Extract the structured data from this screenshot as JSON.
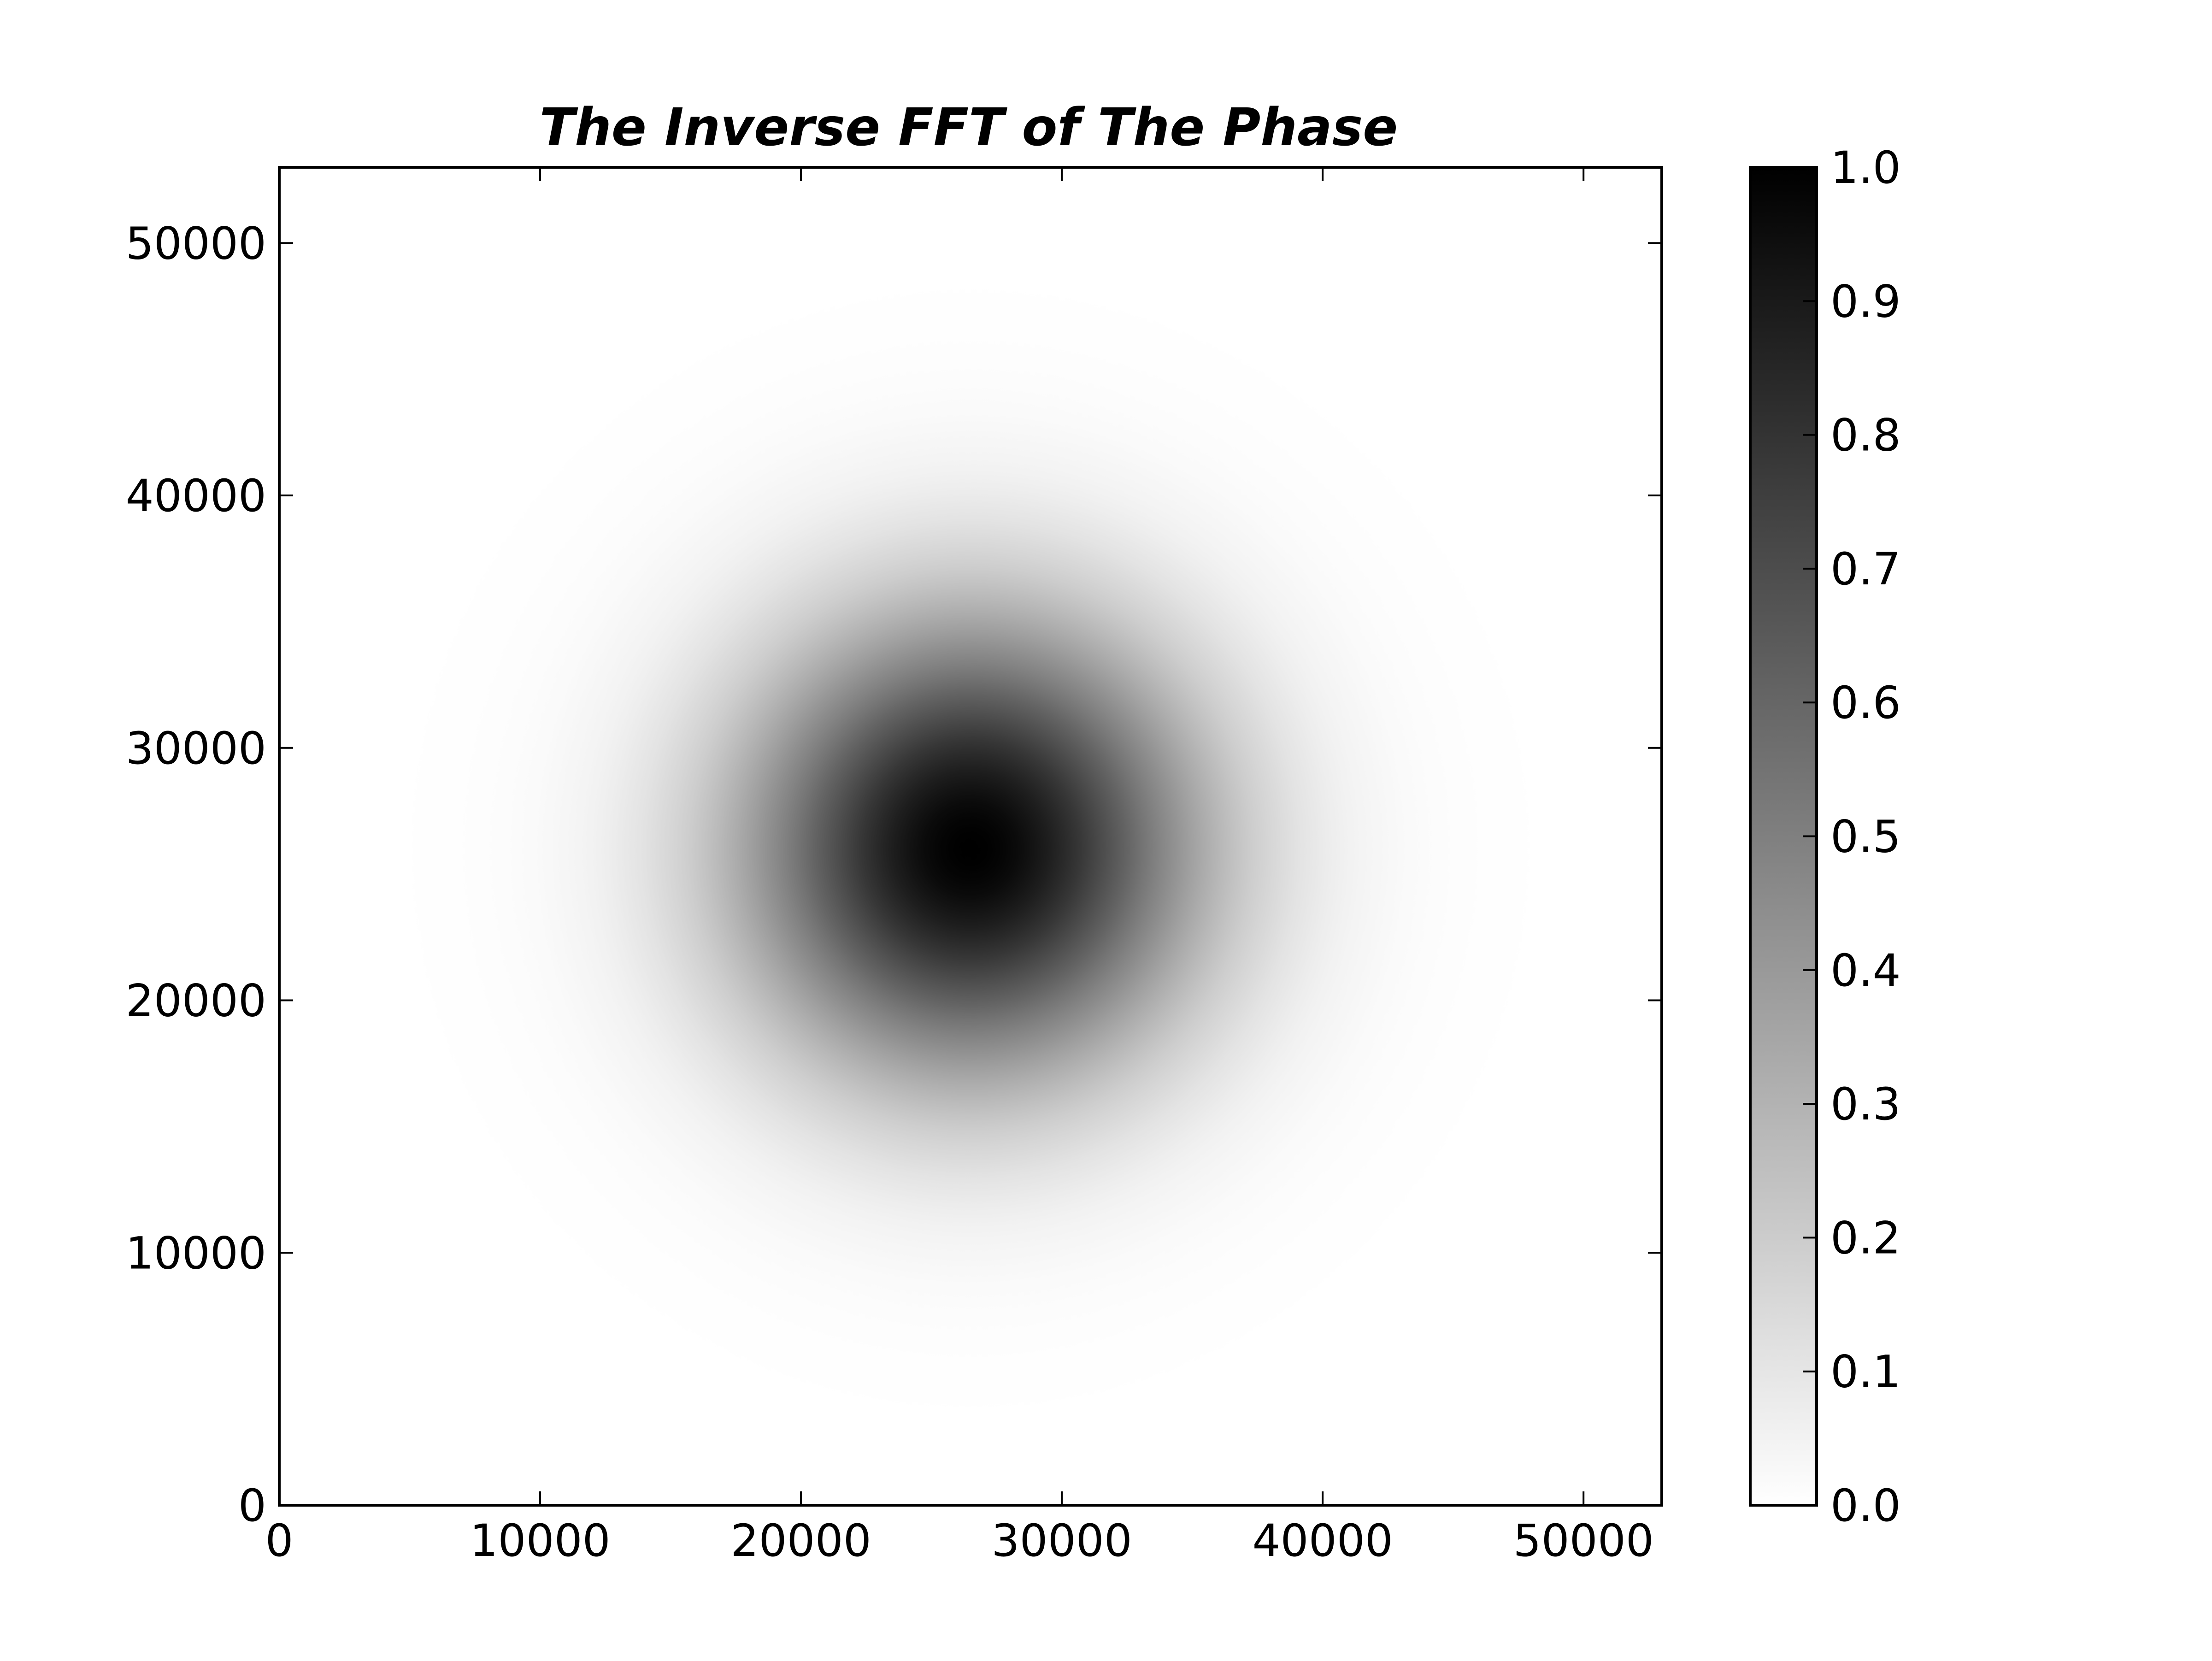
{
  "chart_data": {
    "type": "heatmap",
    "title": "The Inverse FFT of The Phase",
    "xlabel": "",
    "ylabel": "",
    "xlim": [
      0,
      53000
    ],
    "ylim": [
      0,
      53000
    ],
    "x_ticks": [
      0,
      10000,
      20000,
      30000,
      40000,
      50000
    ],
    "y_ticks": [
      0,
      10000,
      20000,
      30000,
      40000,
      50000
    ],
    "x_tick_labels": [
      "0",
      "10000",
      "20000",
      "30000",
      "40000",
      "50000"
    ],
    "y_tick_labels": [
      "0",
      "10000",
      "20000",
      "30000",
      "40000",
      "50000"
    ],
    "colormap": "gray_r",
    "colormap_colors": [
      "#ffffff",
      "#000000"
    ],
    "grid": false,
    "field": {
      "shape": "gaussian",
      "center_x": 26500,
      "center_y": 26000,
      "sigma": 6000,
      "peak": 1.0
    },
    "colorbar": {
      "vmin": 0.0,
      "vmax": 1.0,
      "ticks": [
        0.0,
        0.1,
        0.2,
        0.3,
        0.4,
        0.5,
        0.6,
        0.7,
        0.8,
        0.9,
        1.0
      ],
      "tick_labels": [
        "0.0",
        "0.1",
        "0.2",
        "0.3",
        "0.4",
        "0.5",
        "0.6",
        "0.7",
        "0.8",
        "0.9",
        "1.0"
      ]
    }
  }
}
